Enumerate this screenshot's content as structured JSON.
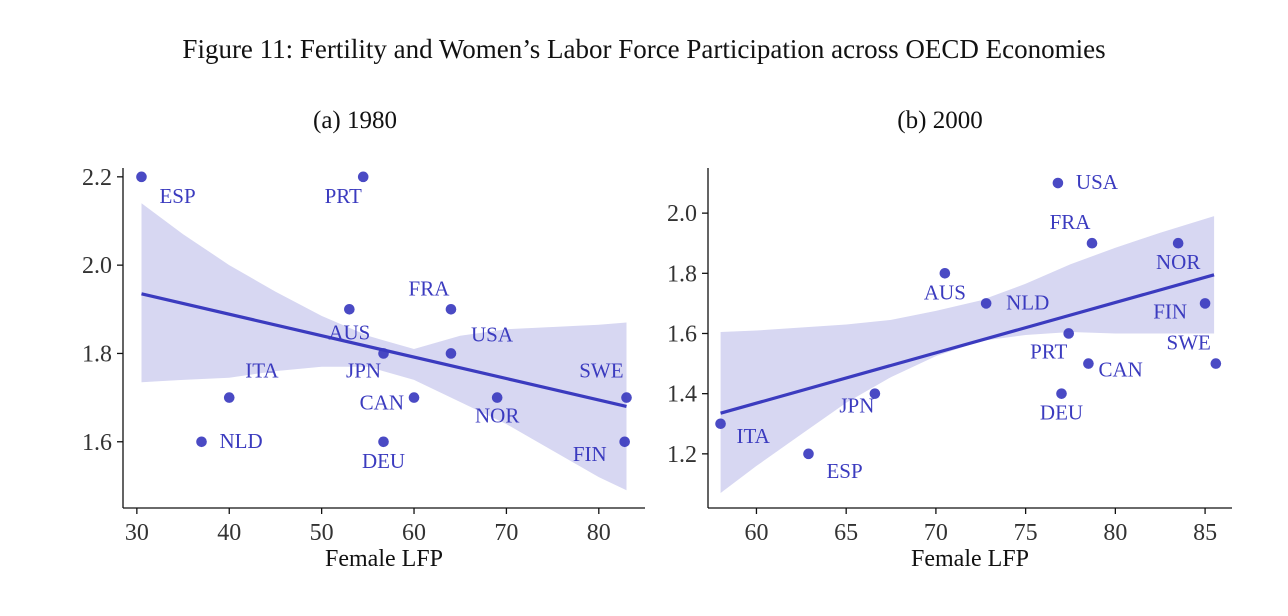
{
  "figure_title": "Figure 11: Fertility and Women’s Labor Force Participation across OECD Economies",
  "colors": {
    "point": "#3b3bbf",
    "point_light": "#6a6ad0",
    "line": "#3b3bbf",
    "band": "#d7d7f2",
    "label": "#3b3bbf",
    "axis": "#111111"
  },
  "chart_data": [
    {
      "type": "scatter",
      "title": "(a) 1980",
      "xlabel": "Female LFP",
      "ylabel": "",
      "xlim": [
        28.5,
        85
      ],
      "ylim": [
        1.45,
        2.22
      ],
      "xticks": [
        30,
        40,
        50,
        60,
        70,
        80
      ],
      "yticks": [
        1.6,
        1.8,
        2.0,
        2.2
      ],
      "ytick_labels": [
        "1.6",
        "1.8",
        "2.0",
        "2.2"
      ],
      "fit_line": {
        "x": [
          30.5,
          83
        ],
        "y": [
          1.935,
          1.68
        ]
      },
      "confidence_band": {
        "x": [
          30.5,
          35,
          40,
          45,
          50,
          55,
          60,
          65,
          70,
          75,
          80,
          83
        ],
        "lower": [
          1.735,
          1.74,
          1.745,
          1.76,
          1.77,
          1.77,
          1.74,
          1.69,
          1.64,
          1.58,
          1.52,
          1.49
        ],
        "upper": [
          2.14,
          2.07,
          2.0,
          1.94,
          1.885,
          1.84,
          1.81,
          1.84,
          1.855,
          1.86,
          1.865,
          1.87
        ]
      },
      "points": [
        {
          "label": "ESP",
          "x": 30.5,
          "y": 2.2
        },
        {
          "label": "PRT",
          "x": 54.5,
          "y": 2.2
        },
        {
          "label": "FRA",
          "x": 64,
          "y": 1.9
        },
        {
          "label": "AUS",
          "x": 53,
          "y": 1.9
        },
        {
          "label": "USA",
          "x": 64,
          "y": 1.8
        },
        {
          "label": "JPN",
          "x": 56.7,
          "y": 1.8
        },
        {
          "label": "ITA",
          "x": 40,
          "y": 1.7
        },
        {
          "label": "CAN",
          "x": 60,
          "y": 1.7
        },
        {
          "label": "NOR",
          "x": 69,
          "y": 1.7
        },
        {
          "label": "SWE",
          "x": 83,
          "y": 1.7
        },
        {
          "label": "NLD",
          "x": 37,
          "y": 1.6
        },
        {
          "label": "DEU",
          "x": 56.7,
          "y": 1.6
        },
        {
          "label": "FIN",
          "x": 82.8,
          "y": 1.6
        }
      ]
    },
    {
      "type": "scatter",
      "title": "(b) 2000",
      "xlabel": "Female LFP",
      "ylabel": "",
      "xlim": [
        57.3,
        86.5
      ],
      "ylim": [
        1.02,
        2.15
      ],
      "xticks": [
        60,
        65,
        70,
        75,
        80,
        85
      ],
      "yticks": [
        1.2,
        1.4,
        1.6,
        1.8,
        2.0
      ],
      "ytick_labels": [
        "1.2",
        "1.4",
        "1.6",
        "1.8",
        "2.0"
      ],
      "fit_line": {
        "x": [
          58,
          85.5
        ],
        "y": [
          1.335,
          1.795
        ]
      },
      "confidence_band": {
        "x": [
          58,
          60,
          62.5,
          65,
          67.5,
          70,
          72.5,
          75,
          77.5,
          80,
          82.5,
          85.5
        ],
        "lower": [
          1.07,
          1.16,
          1.265,
          1.37,
          1.455,
          1.525,
          1.575,
          1.595,
          1.605,
          1.6,
          1.6,
          1.6
        ],
        "upper": [
          1.605,
          1.61,
          1.62,
          1.63,
          1.645,
          1.675,
          1.71,
          1.765,
          1.83,
          1.885,
          1.935,
          1.99
        ]
      },
      "points": [
        {
          "label": "USA",
          "x": 76.8,
          "y": 2.1
        },
        {
          "label": "FRA",
          "x": 78.7,
          "y": 1.9
        },
        {
          "label": "NOR",
          "x": 83.5,
          "y": 1.9
        },
        {
          "label": "AUS",
          "x": 70.5,
          "y": 1.8
        },
        {
          "label": "NLD",
          "x": 72.8,
          "y": 1.7
        },
        {
          "label": "FIN",
          "x": 85,
          "y": 1.7
        },
        {
          "label": "PRT",
          "x": 77.4,
          "y": 1.6
        },
        {
          "label": "CAN",
          "x": 78.5,
          "y": 1.5
        },
        {
          "label": "SWE",
          "x": 85.6,
          "y": 1.5
        },
        {
          "label": "JPN",
          "x": 66.6,
          "y": 1.4
        },
        {
          "label": "DEU",
          "x": 77,
          "y": 1.4
        },
        {
          "label": "ITA",
          "x": 58,
          "y": 1.3
        },
        {
          "label": "ESP",
          "x": 62.9,
          "y": 1.2
        }
      ]
    }
  ]
}
